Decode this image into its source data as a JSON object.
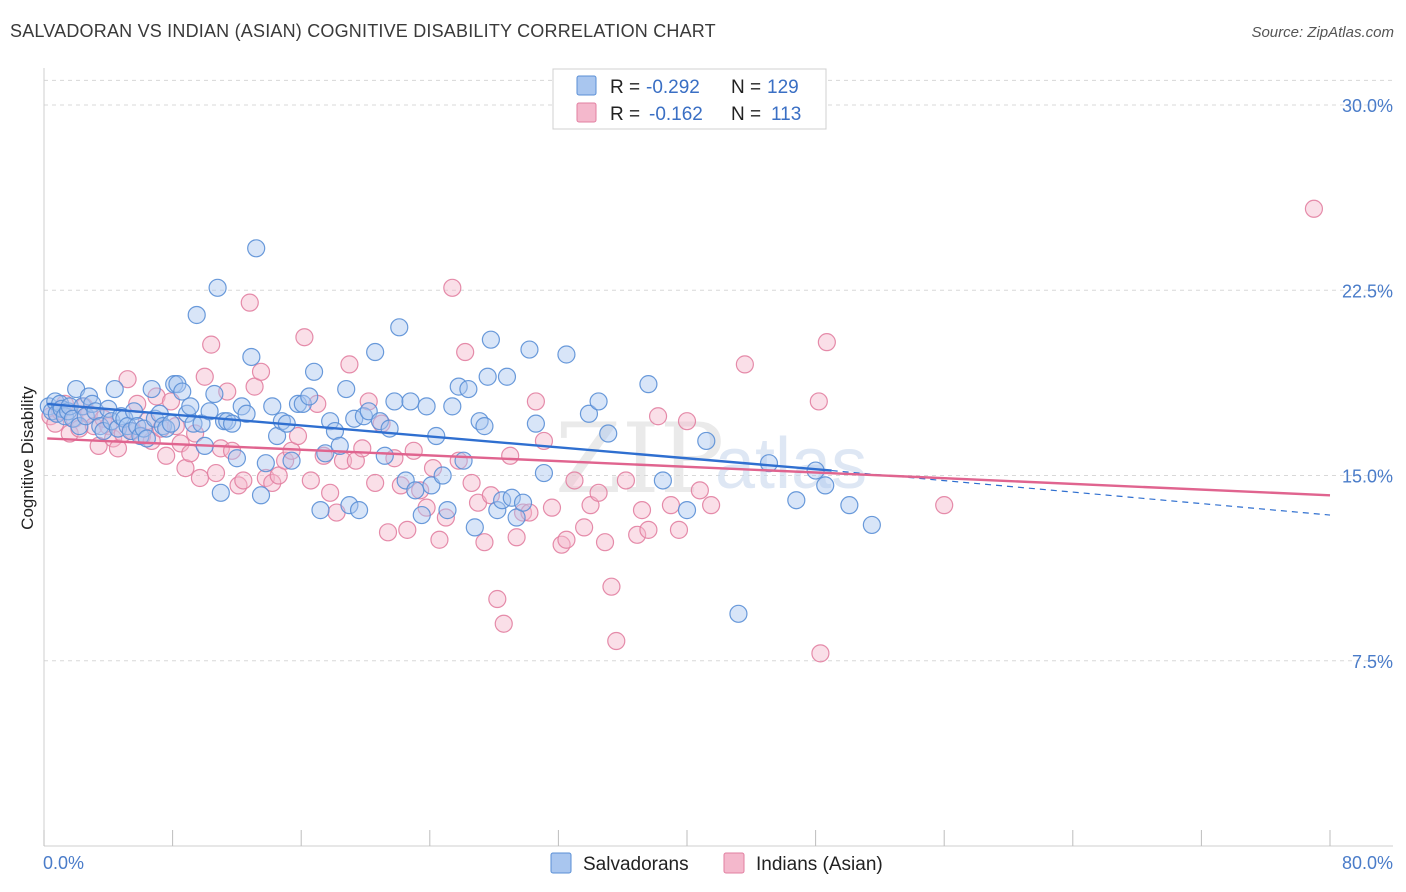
{
  "header": {
    "title": "SALVADORAN VS INDIAN (ASIAN) COGNITIVE DISABILITY CORRELATION CHART",
    "source": "Source: ZipAtlas.com"
  },
  "watermark": {
    "zip": "ZIP",
    "atlas": "atlas"
  },
  "colors": {
    "blue_fill": "#a9c6ef",
    "blue_stroke": "#5a8fd6",
    "blue_line": "#2f6fd0",
    "pink_fill": "#f4b8cc",
    "pink_stroke": "#e27fa1",
    "pink_line": "#e0648f",
    "grid": "#d8d8d8",
    "tick_text": "#4a7cc9"
  },
  "legend": {
    "rows": [
      {
        "r_label": "R =",
        "r_value": "-0.292",
        "n_label": "N =",
        "n_value": "129",
        "color": "blue"
      },
      {
        "r_label": "R =",
        "r_value": "-0.162",
        "n_label": "N =",
        "n_value": "113",
        "color": "pink"
      }
    ]
  },
  "bottom_legend": [
    "Salvadorans",
    "Indians (Asian)"
  ],
  "chart_data": {
    "type": "scatter",
    "title": "SALVADORAN VS INDIAN (ASIAN) COGNITIVE DISABILITY CORRELATION CHART",
    "xlabel": "",
    "ylabel": "Cognitive Disability",
    "xlim": [
      0,
      80
    ],
    "ylim": [
      0,
      31.5
    ],
    "x_tick_labels": [
      "0.0%",
      "80.0%"
    ],
    "y_ticks": [
      7.5,
      15.0,
      22.5,
      30.0
    ],
    "y_tick_labels": [
      "7.5%",
      "15.0%",
      "22.5%",
      "30.0%"
    ],
    "grid": true,
    "legend_position": "top-center",
    "series": [
      {
        "name": "Salvadorans",
        "r": -0.292,
        "n": 129,
        "trend": {
          "x0": 0.2,
          "y0": 17.9,
          "x1": 49.0,
          "y1": 15.2,
          "dash_to_x": 80.0,
          "dash_to_y": 13.4
        },
        "points": [
          [
            0.3,
            17.8
          ],
          [
            0.5,
            17.6
          ],
          [
            0.7,
            18.0
          ],
          [
            0.8,
            17.5
          ],
          [
            1.0,
            17.9
          ],
          [
            1.1,
            17.7
          ],
          [
            1.3,
            17.4
          ],
          [
            1.5,
            17.6
          ],
          [
            1.6,
            17.8
          ],
          [
            1.8,
            17.3
          ],
          [
            2.0,
            18.5
          ],
          [
            2.2,
            17.0
          ],
          [
            2.4,
            17.8
          ],
          [
            2.6,
            17.4
          ],
          [
            2.8,
            18.2
          ],
          [
            3.0,
            17.9
          ],
          [
            3.2,
            17.6
          ],
          [
            3.5,
            17.0
          ],
          [
            3.7,
            16.8
          ],
          [
            4.0,
            17.7
          ],
          [
            4.2,
            17.2
          ],
          [
            4.4,
            18.5
          ],
          [
            4.6,
            16.9
          ],
          [
            4.8,
            17.4
          ],
          [
            5.0,
            17.3
          ],
          [
            5.2,
            17.0
          ],
          [
            5.4,
            16.8
          ],
          [
            5.6,
            17.6
          ],
          [
            5.8,
            17.0
          ],
          [
            6.0,
            16.6
          ],
          [
            6.2,
            16.9
          ],
          [
            6.4,
            16.5
          ],
          [
            6.7,
            18.5
          ],
          [
            6.9,
            17.3
          ],
          [
            7.2,
            17.5
          ],
          [
            7.4,
            17.0
          ],
          [
            7.6,
            16.9
          ],
          [
            7.9,
            17.1
          ],
          [
            8.1,
            18.7
          ],
          [
            8.3,
            18.7
          ],
          [
            8.6,
            18.4
          ],
          [
            8.9,
            17.5
          ],
          [
            9.1,
            17.8
          ],
          [
            9.3,
            17.1
          ],
          [
            9.5,
            21.5
          ],
          [
            9.8,
            17.1
          ],
          [
            10.0,
            16.2
          ],
          [
            10.3,
            17.6
          ],
          [
            10.6,
            18.3
          ],
          [
            10.8,
            22.6
          ],
          [
            11.0,
            14.3
          ],
          [
            11.2,
            17.2
          ],
          [
            11.4,
            17.2
          ],
          [
            11.7,
            17.1
          ],
          [
            12.0,
            15.7
          ],
          [
            12.3,
            17.8
          ],
          [
            12.6,
            17.5
          ],
          [
            12.9,
            19.8
          ],
          [
            13.2,
            24.2
          ],
          [
            13.5,
            14.2
          ],
          [
            13.8,
            15.5
          ],
          [
            14.2,
            17.8
          ],
          [
            14.5,
            16.6
          ],
          [
            14.8,
            17.2
          ],
          [
            15.1,
            17.1
          ],
          [
            15.4,
            15.6
          ],
          [
            15.8,
            17.9
          ],
          [
            16.1,
            17.9
          ],
          [
            16.5,
            18.2
          ],
          [
            16.8,
            19.2
          ],
          [
            17.2,
            13.6
          ],
          [
            17.5,
            15.9
          ],
          [
            17.8,
            17.2
          ],
          [
            18.1,
            16.8
          ],
          [
            18.4,
            16.2
          ],
          [
            18.8,
            18.5
          ],
          [
            19.0,
            13.8
          ],
          [
            19.3,
            17.3
          ],
          [
            19.6,
            13.6
          ],
          [
            19.9,
            17.4
          ],
          [
            20.2,
            17.6
          ],
          [
            20.6,
            20.0
          ],
          [
            20.9,
            17.2
          ],
          [
            21.2,
            15.8
          ],
          [
            21.5,
            16.9
          ],
          [
            21.8,
            18.0
          ],
          [
            22.1,
            21.0
          ],
          [
            22.5,
            14.8
          ],
          [
            22.8,
            18.0
          ],
          [
            23.1,
            14.4
          ],
          [
            23.5,
            13.4
          ],
          [
            23.8,
            17.8
          ],
          [
            24.1,
            14.6
          ],
          [
            24.4,
            16.6
          ],
          [
            24.8,
            15.0
          ],
          [
            25.1,
            13.6
          ],
          [
            25.4,
            17.8
          ],
          [
            25.8,
            18.6
          ],
          [
            26.1,
            15.6
          ],
          [
            26.4,
            18.5
          ],
          [
            26.8,
            12.9
          ],
          [
            27.1,
            17.2
          ],
          [
            27.4,
            17.0
          ],
          [
            27.6,
            19.0
          ],
          [
            27.8,
            20.5
          ],
          [
            28.2,
            13.6
          ],
          [
            28.5,
            14.0
          ],
          [
            28.8,
            19.0
          ],
          [
            29.1,
            14.1
          ],
          [
            29.4,
            13.3
          ],
          [
            29.8,
            13.9
          ],
          [
            30.2,
            20.1
          ],
          [
            30.6,
            17.1
          ],
          [
            31.1,
            15.1
          ],
          [
            32.5,
            19.9
          ],
          [
            33.9,
            17.5
          ],
          [
            34.5,
            18.0
          ],
          [
            35.1,
            16.7
          ],
          [
            37.6,
            18.7
          ],
          [
            38.5,
            14.8
          ],
          [
            40.0,
            13.6
          ],
          [
            41.2,
            16.4
          ],
          [
            43.2,
            9.4
          ],
          [
            45.1,
            15.5
          ],
          [
            46.8,
            14.0
          ],
          [
            48.0,
            15.2
          ],
          [
            48.6,
            14.6
          ],
          [
            50.1,
            13.8
          ],
          [
            51.5,
            13.0
          ]
        ]
      },
      {
        "name": "Indians (Asian)",
        "r": -0.162,
        "n": 113,
        "trend": {
          "x0": 0.2,
          "y0": 16.5,
          "x1": 80.0,
          "y1": 14.2
        },
        "points": [
          [
            0.4,
            17.4
          ],
          [
            0.7,
            17.1
          ],
          [
            1.0,
            17.6
          ],
          [
            1.3,
            17.9
          ],
          [
            1.6,
            16.7
          ],
          [
            1.9,
            17.3
          ],
          [
            2.2,
            16.9
          ],
          [
            2.5,
            17.8
          ],
          [
            2.8,
            17.5
          ],
          [
            3.1,
            17.0
          ],
          [
            3.4,
            16.2
          ],
          [
            3.7,
            17.3
          ],
          [
            4.0,
            17.0
          ],
          [
            4.3,
            16.5
          ],
          [
            4.6,
            16.1
          ],
          [
            4.9,
            16.7
          ],
          [
            5.2,
            18.9
          ],
          [
            5.5,
            16.8
          ],
          [
            5.8,
            17.9
          ],
          [
            6.1,
            16.6
          ],
          [
            6.4,
            17.2
          ],
          [
            6.7,
            16.4
          ],
          [
            7.0,
            18.2
          ],
          [
            7.3,
            16.9
          ],
          [
            7.6,
            15.8
          ],
          [
            7.9,
            18.0
          ],
          [
            8.2,
            17.0
          ],
          [
            8.5,
            16.3
          ],
          [
            8.8,
            15.3
          ],
          [
            9.1,
            15.9
          ],
          [
            9.4,
            16.7
          ],
          [
            9.7,
            14.9
          ],
          [
            10.0,
            19.0
          ],
          [
            10.4,
            20.3
          ],
          [
            10.7,
            15.1
          ],
          [
            11.0,
            16.1
          ],
          [
            11.4,
            18.4
          ],
          [
            11.7,
            16.0
          ],
          [
            12.1,
            14.6
          ],
          [
            12.4,
            14.8
          ],
          [
            12.8,
            22.0
          ],
          [
            13.1,
            18.6
          ],
          [
            13.5,
            19.2
          ],
          [
            13.8,
            14.9
          ],
          [
            14.2,
            14.7
          ],
          [
            14.6,
            15.0
          ],
          [
            15.0,
            15.6
          ],
          [
            15.4,
            16.0
          ],
          [
            15.8,
            16.6
          ],
          [
            16.2,
            20.6
          ],
          [
            16.6,
            14.8
          ],
          [
            17.0,
            17.9
          ],
          [
            17.4,
            15.8
          ],
          [
            17.8,
            14.3
          ],
          [
            18.2,
            13.5
          ],
          [
            18.6,
            15.6
          ],
          [
            19.0,
            19.5
          ],
          [
            19.4,
            15.6
          ],
          [
            19.8,
            16.1
          ],
          [
            20.2,
            18.0
          ],
          [
            20.6,
            14.7
          ],
          [
            21.0,
            17.1
          ],
          [
            21.4,
            12.7
          ],
          [
            21.8,
            15.7
          ],
          [
            22.2,
            14.6
          ],
          [
            22.6,
            12.8
          ],
          [
            23.0,
            16.0
          ],
          [
            23.4,
            14.4
          ],
          [
            23.8,
            13.7
          ],
          [
            24.2,
            15.3
          ],
          [
            24.6,
            12.4
          ],
          [
            25.0,
            13.3
          ],
          [
            25.4,
            22.6
          ],
          [
            25.8,
            15.6
          ],
          [
            26.2,
            20.0
          ],
          [
            26.6,
            14.7
          ],
          [
            27.0,
            13.9
          ],
          [
            27.4,
            12.3
          ],
          [
            27.8,
            14.2
          ],
          [
            28.2,
            10.0
          ],
          [
            28.6,
            9.0
          ],
          [
            29.0,
            15.8
          ],
          [
            29.4,
            12.5
          ],
          [
            29.8,
            13.5
          ],
          [
            30.2,
            13.5
          ],
          [
            30.6,
            18.0
          ],
          [
            31.1,
            16.4
          ],
          [
            31.6,
            13.7
          ],
          [
            32.2,
            12.2
          ],
          [
            32.5,
            12.4
          ],
          [
            33.0,
            14.8
          ],
          [
            33.6,
            12.9
          ],
          [
            34.0,
            13.8
          ],
          [
            34.5,
            14.3
          ],
          [
            34.9,
            12.3
          ],
          [
            35.3,
            10.5
          ],
          [
            35.6,
            8.3
          ],
          [
            36.2,
            14.8
          ],
          [
            36.9,
            12.6
          ],
          [
            37.2,
            13.6
          ],
          [
            37.6,
            12.8
          ],
          [
            38.2,
            17.4
          ],
          [
            39.0,
            13.8
          ],
          [
            39.5,
            12.8
          ],
          [
            40.0,
            17.2
          ],
          [
            40.8,
            14.4
          ],
          [
            41.5,
            13.8
          ],
          [
            43.6,
            19.5
          ],
          [
            48.7,
            20.4
          ],
          [
            48.2,
            18.0
          ],
          [
            48.3,
            7.8
          ],
          [
            56.0,
            13.8
          ],
          [
            79.0,
            25.8
          ]
        ]
      }
    ]
  }
}
